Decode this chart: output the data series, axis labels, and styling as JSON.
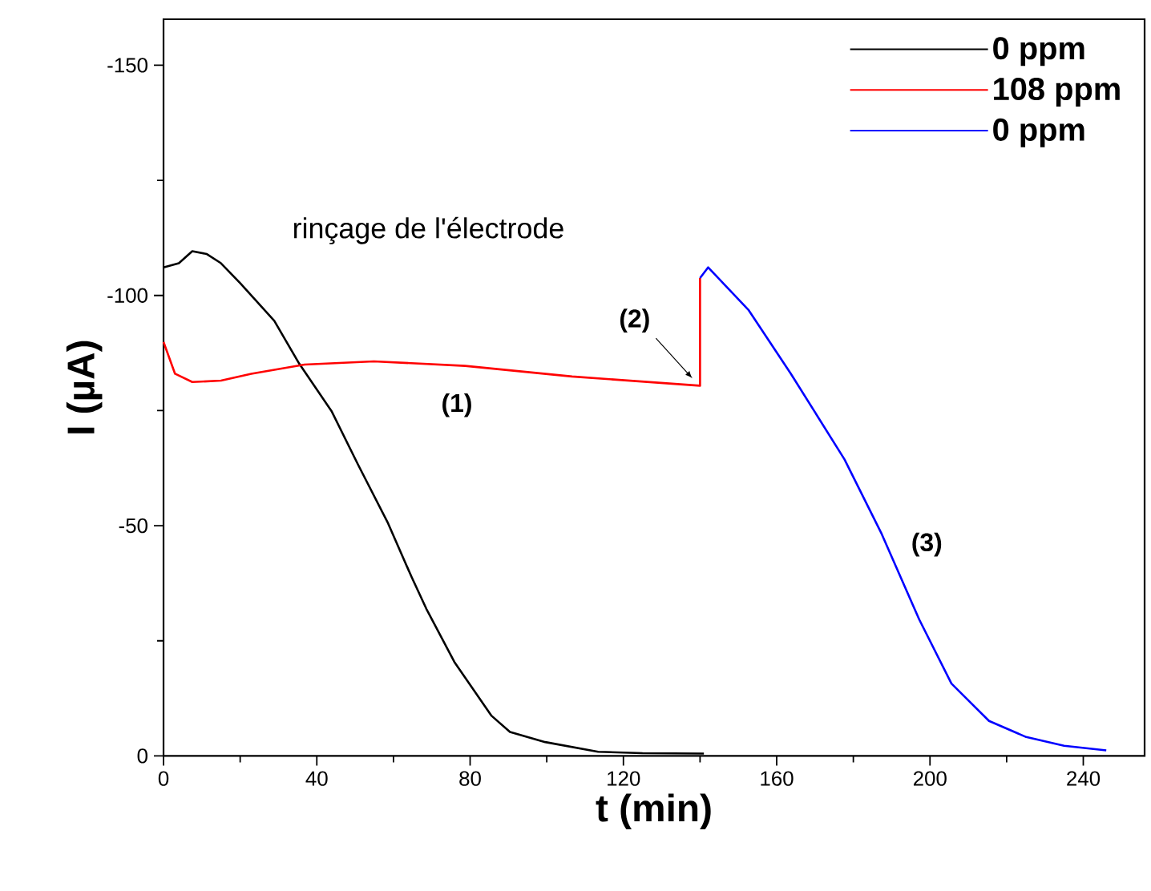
{
  "chart_data": {
    "type": "line",
    "xlabel": "t (min)",
    "ylabel": "I (µA)",
    "xlim": [
      0,
      256
    ],
    "ylim": [
      0,
      -160
    ],
    "xticks": [
      0,
      40,
      80,
      120,
      160,
      200,
      240
    ],
    "yticks": [
      0,
      -50,
      -100,
      -150
    ],
    "legend": "top right",
    "grid": false,
    "marker": "none",
    "line_style": "solid",
    "annotations": [
      "rinçage de l'électrode",
      "(1)",
      {
        "text": "(2)",
        "x": 138,
        "y": -82
      },
      "(3)"
    ],
    "series": [
      {
        "name": "0 ppm",
        "color": "#000000",
        "x": [
          0,
          4,
          7.5,
          11.3,
          15,
          20.1,
          28.9,
          35.4,
          43.9,
          50.8,
          58.6,
          64.7,
          68.6,
          75.9,
          85.6,
          90.4,
          99.6,
          113.4,
          125,
          141
        ],
        "values": [
          -106.1,
          -107,
          -109.6,
          -109,
          -107,
          -102.6,
          -94.5,
          -85.2,
          -74.8,
          -63.2,
          -50.5,
          -38.9,
          -31.9,
          -20.4,
          -8.7,
          -5.2,
          -3,
          -0.9,
          -0.6,
          -0.5
        ]
      },
      {
        "name": "108 ppm",
        "color": "#ff0000",
        "x": [
          0,
          3,
          7.5,
          15,
          22.9,
          36.8,
          54.9,
          78.7,
          106.6,
          140,
          140
        ],
        "values": [
          -89.9,
          -83,
          -81.2,
          -81.5,
          -83,
          -85,
          -85.7,
          -84.7,
          -82.4,
          -80.4,
          -103.8
        ]
      },
      {
        "name": "0 ppm",
        "color": "#0000ff",
        "x": [
          140,
          142.1,
          152.6,
          163.7,
          177.7,
          187.4,
          197.2,
          205.6,
          215.4,
          225.1,
          235,
          246
        ],
        "values": [
          -103.8,
          -106.1,
          -96.9,
          -83,
          -64.4,
          -48.2,
          -29.6,
          -15.7,
          -7.6,
          -4.1,
          -2.2,
          -1.2
        ]
      }
    ]
  }
}
